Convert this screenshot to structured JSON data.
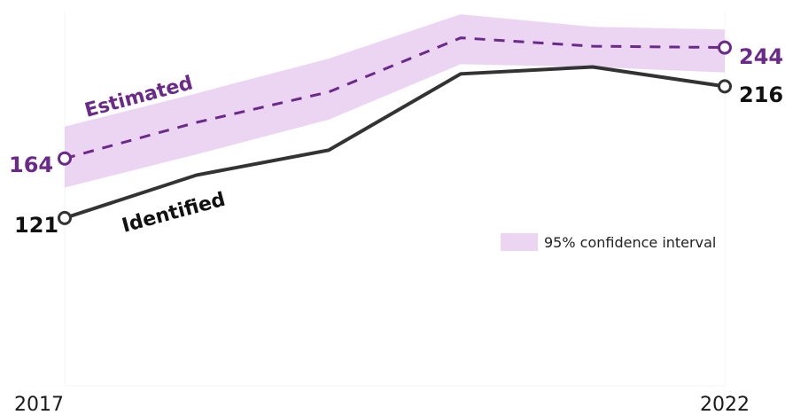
{
  "chart_data": {
    "type": "line",
    "x": [
      2017,
      2018,
      2019,
      2020,
      2021,
      2022
    ],
    "xticks": [
      "2017",
      "2022"
    ],
    "ylim": [
      0,
      270
    ],
    "grid": false,
    "series": [
      {
        "name": "Estimated",
        "style": "dashed",
        "color": "#6b2a8a",
        "values": [
          164,
          190,
          212,
          251,
          245,
          244
        ],
        "ci_lower": [
          143,
          167,
          192,
          232,
          230,
          226
        ],
        "ci_upper": [
          187,
          211,
          236,
          268,
          259,
          257
        ]
      },
      {
        "name": "Identified",
        "style": "solid",
        "color": "#333333",
        "values": [
          121,
          152,
          170,
          225,
          230,
          216
        ]
      }
    ],
    "end_labels": {
      "estimated_start": "164",
      "estimated_end": "244",
      "identified_start": "121",
      "identified_end": "216"
    },
    "legend": {
      "label": "95% confidence interval",
      "color": "#ebd5f2",
      "position": "right-middle"
    }
  }
}
